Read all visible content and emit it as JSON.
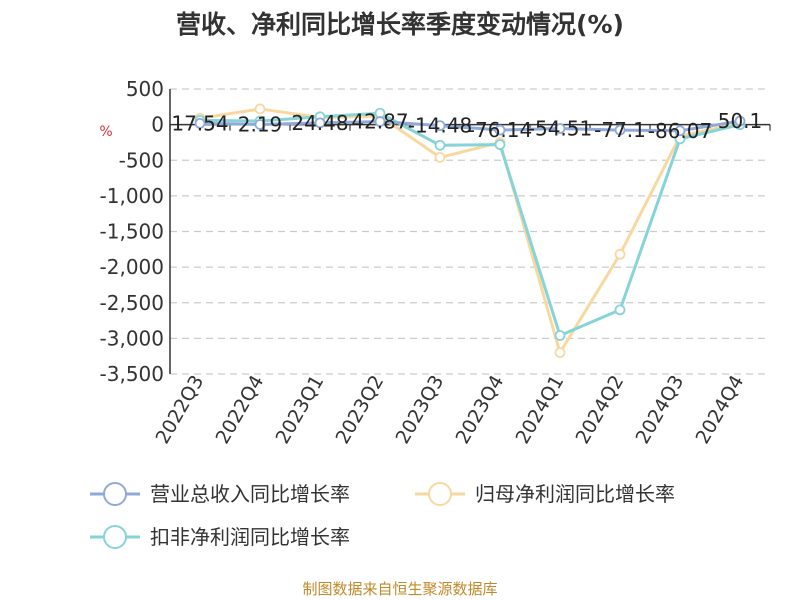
{
  "title": "营收、净利同比增长率季度变动情况(%)",
  "source": "制图数据来自恒生聚源数据库",
  "chart_data": {
    "type": "line",
    "title": "营收、净利同比增长率季度变动情况(%)",
    "ylabel": "%",
    "xlabel": "",
    "categories": [
      "2022Q3",
      "2022Q4",
      "2023Q1",
      "2023Q2",
      "2023Q3",
      "2023Q4",
      "2024Q1",
      "2024Q2",
      "2024Q3",
      "2024Q4"
    ],
    "ylim": [
      -3500,
      500
    ],
    "yticks": [
      500,
      0,
      -500,
      -1000,
      -1500,
      -2000,
      -2500,
      -3000,
      -3500
    ],
    "ytick_labels": [
      "500",
      "0",
      "-500",
      "-1,000",
      "-1,500",
      "-2,000",
      "-2,500",
      "-3,000",
      "-3,500"
    ],
    "grid": "horizontal dashed",
    "legend_position": "bottom",
    "series": [
      {
        "name": "营业总收入同比增长率",
        "color": "#8fa9d8",
        "values": [
          17.54,
          2.19,
          24.48,
          42.87,
          -14.48,
          -76.14,
          -54.51,
          -77.1,
          -86.07,
          50.1
        ],
        "labels": [
          "17.54",
          "2.19",
          "24.48",
          "42.87",
          "-14.48",
          "-76.14",
          "-54.51",
          "-77.1",
          "-86.07",
          "50.1"
        ]
      },
      {
        "name": "归母净利润同比增长率",
        "color": "#f7d9a0",
        "values": [
          90,
          220,
          100,
          120,
          -460,
          -250,
          -3200,
          -1820,
          -160,
          20
        ]
      },
      {
        "name": "扣非净利润同比增长率",
        "color": "#86d3d8",
        "values": [
          60,
          50,
          110,
          160,
          -290,
          -280,
          -2960,
          -2600,
          -200,
          0
        ]
      }
    ]
  }
}
